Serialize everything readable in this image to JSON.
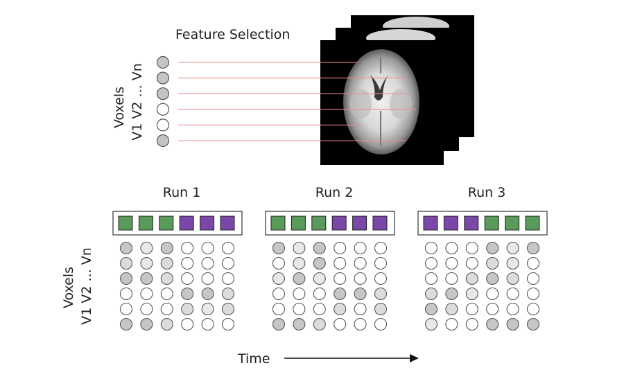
{
  "top": {
    "title": "Feature Selection",
    "voxel_axis_line1": "Voxels",
    "voxel_axis_line2": "V1 V2 ... Vn",
    "voxel_shades": [
      "#c4c4c4",
      "#c4c4c4",
      "#c4c4c4",
      "#ffffff",
      "#ffffff",
      "#c4c4c4"
    ]
  },
  "colors": {
    "green": "#5a9a5a",
    "purple": "#7b47a8",
    "selection_line": "#e89090"
  },
  "runs": [
    {
      "label": "Run 1",
      "blocks": [
        "green",
        "green",
        "green",
        "purple",
        "purple",
        "purple"
      ],
      "matrix": [
        [
          "#c6c6c6",
          "#e8e8e8",
          "#c6c6c6",
          "#ffffff",
          "#ffffff",
          "#ffffff"
        ],
        [
          "#dcdcdc",
          "#e8e8e8",
          "#dcdcdc",
          "#ffffff",
          "#ffffff",
          "#ffffff"
        ],
        [
          "#c6c6c6",
          "#c6c6c6",
          "#dcdcdc",
          "#ffffff",
          "#ffffff",
          "#ffffff"
        ],
        [
          "#ffffff",
          "#ffffff",
          "#ffffff",
          "#c6c6c6",
          "#c6c6c6",
          "#dcdcdc"
        ],
        [
          "#ffffff",
          "#ffffff",
          "#ffffff",
          "#dcdcdc",
          "#e8e8e8",
          "#dcdcdc"
        ],
        [
          "#c6c6c6",
          "#c6c6c6",
          "#dcdcdc",
          "#ffffff",
          "#ffffff",
          "#ffffff"
        ]
      ]
    },
    {
      "label": "Run 2",
      "blocks": [
        "green",
        "green",
        "green",
        "purple",
        "purple",
        "purple"
      ],
      "matrix": [
        [
          "#c6c6c6",
          "#e8e8e8",
          "#c6c6c6",
          "#ffffff",
          "#ffffff",
          "#ffffff"
        ],
        [
          "#ffffff",
          "#e8e8e8",
          "#c6c6c6",
          "#ffffff",
          "#ffffff",
          "#ffffff"
        ],
        [
          "#e8e8e8",
          "#c6c6c6",
          "#e8e8e8",
          "#ffffff",
          "#ffffff",
          "#ffffff"
        ],
        [
          "#ffffff",
          "#ffffff",
          "#ffffff",
          "#c6c6c6",
          "#c6c6c6",
          "#dcdcdc"
        ],
        [
          "#ffffff",
          "#ffffff",
          "#ffffff",
          "#dcdcdc",
          "#ffffff",
          "#dcdcdc"
        ],
        [
          "#c6c6c6",
          "#c6c6c6",
          "#dcdcdc",
          "#ffffff",
          "#ffffff",
          "#ffffff"
        ]
      ]
    },
    {
      "label": "Run 3",
      "blocks": [
        "purple",
        "purple",
        "purple",
        "green",
        "green",
        "green"
      ],
      "matrix": [
        [
          "#ffffff",
          "#ffffff",
          "#ffffff",
          "#c6c6c6",
          "#e8e8e8",
          "#c6c6c6"
        ],
        [
          "#ffffff",
          "#ffffff",
          "#ffffff",
          "#dcdcdc",
          "#e8e8e8",
          "#ffffff"
        ],
        [
          "#ffffff",
          "#ffffff",
          "#dcdcdc",
          "#c6c6c6",
          "#dcdcdc",
          "#ffffff"
        ],
        [
          "#dcdcdc",
          "#c6c6c6",
          "#e8e8e8",
          "#ffffff",
          "#ffffff",
          "#ffffff"
        ],
        [
          "#c6c6c6",
          "#dcdcdc",
          "#ffffff",
          "#ffffff",
          "#ffffff",
          "#ffffff"
        ],
        [
          "#e8e8e8",
          "#ffffff",
          "#ffffff",
          "#c6c6c6",
          "#c6c6c6",
          "#c6c6c6"
        ]
      ]
    }
  ],
  "bottom": {
    "voxel_axis_line1": "Voxels",
    "voxel_axis_line2": "V1 V2 ... Vn",
    "time_label": "Time"
  }
}
